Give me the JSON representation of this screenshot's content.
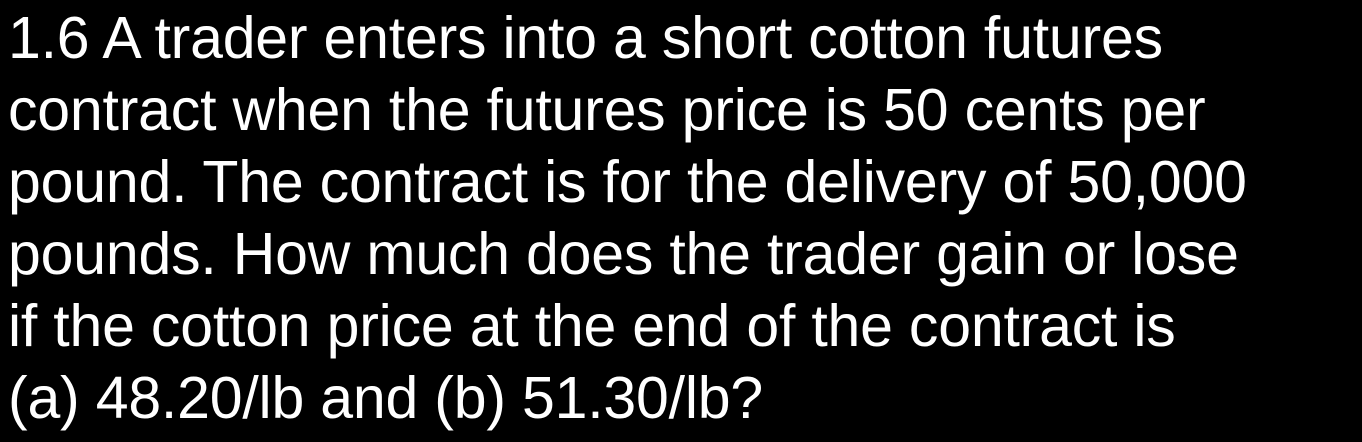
{
  "question": {
    "lines": [
      "1.6  A trader enters into a short cotton futures",
      "contract when the futures price is 50 cents per",
      "pound.  The contract is for the delivery of 50,000",
      "pounds.  How much does the trader gain or lose",
      "if the cotton price at the end of the contract is",
      "(a) 48.20/lb and (b) 51.30/lb?"
    ]
  },
  "colors": {
    "background": "#000000",
    "text": "#ffffff"
  }
}
